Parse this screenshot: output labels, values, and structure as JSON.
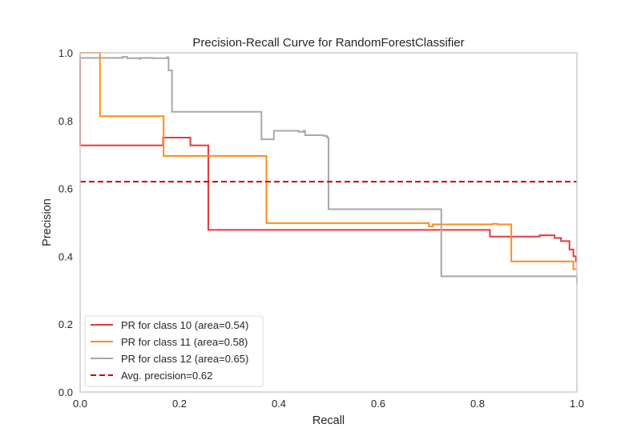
{
  "chart_data": {
    "type": "line",
    "title": "Precision-Recall Curve for RandomForestClassifier",
    "xlabel": "Recall",
    "ylabel": "Precision",
    "xlim": [
      0.0,
      1.0
    ],
    "ylim": [
      0.0,
      1.0
    ],
    "xticks": [
      0.0,
      0.2,
      0.4,
      0.6,
      0.8,
      1.0
    ],
    "yticks": [
      0.0,
      0.2,
      0.4,
      0.6,
      0.8,
      1.0
    ],
    "xtick_labels": [
      "0.0",
      "0.2",
      "0.4",
      "0.6",
      "0.8",
      "1.0"
    ],
    "ytick_labels": [
      "0.0",
      "0.2",
      "0.4",
      "0.6",
      "0.8",
      "1.0"
    ],
    "grid": false,
    "legend_position": "lower-left",
    "series": [
      {
        "name": "PR for class 10 (area=0.54)",
        "color": "#e8383d",
        "step": true,
        "points": [
          [
            0.0,
            1.0
          ],
          [
            0.0,
            0.727
          ],
          [
            0.167,
            0.727
          ],
          [
            0.167,
            0.75
          ],
          [
            0.222,
            0.75
          ],
          [
            0.222,
            0.727
          ],
          [
            0.258,
            0.727
          ],
          [
            0.258,
            0.478
          ],
          [
            0.825,
            0.478
          ],
          [
            0.825,
            0.458
          ],
          [
            0.925,
            0.458
          ],
          [
            0.925,
            0.462
          ],
          [
            0.955,
            0.462
          ],
          [
            0.955,
            0.454
          ],
          [
            0.968,
            0.454
          ],
          [
            0.968,
            0.445
          ],
          [
            0.985,
            0.445
          ],
          [
            0.985,
            0.42
          ],
          [
            0.993,
            0.42
          ],
          [
            0.993,
            0.4
          ],
          [
            0.998,
            0.4
          ],
          [
            0.998,
            0.385
          ],
          [
            1.0,
            0.385
          ]
        ]
      },
      {
        "name": "PR for class 11 (area=0.58)",
        "color": "#ff8c1a",
        "step": true,
        "points": [
          [
            0.0,
            1.0
          ],
          [
            0.04,
            1.0
          ],
          [
            0.04,
            0.813
          ],
          [
            0.168,
            0.813
          ],
          [
            0.168,
            0.696
          ],
          [
            0.375,
            0.696
          ],
          [
            0.375,
            0.498
          ],
          [
            0.702,
            0.498
          ],
          [
            0.702,
            0.488
          ],
          [
            0.71,
            0.488
          ],
          [
            0.71,
            0.494
          ],
          [
            0.83,
            0.494
          ],
          [
            0.83,
            0.496
          ],
          [
            0.84,
            0.496
          ],
          [
            0.84,
            0.494
          ],
          [
            0.868,
            0.494
          ],
          [
            0.868,
            0.385
          ],
          [
            0.993,
            0.385
          ],
          [
            0.993,
            0.362
          ],
          [
            1.0,
            0.362
          ]
        ]
      },
      {
        "name": "PR for class 12 (area=0.65)",
        "color": "#a8a8a8",
        "step": true,
        "points": [
          [
            0.0,
            1.0
          ],
          [
            0.0,
            0.985
          ],
          [
            0.085,
            0.985
          ],
          [
            0.085,
            0.988
          ],
          [
            0.095,
            0.988
          ],
          [
            0.095,
            0.984
          ],
          [
            0.12,
            0.984
          ],
          [
            0.12,
            0.982
          ],
          [
            0.122,
            0.982
          ],
          [
            0.122,
            0.985
          ],
          [
            0.145,
            0.985
          ],
          [
            0.145,
            0.984
          ],
          [
            0.175,
            0.984
          ],
          [
            0.175,
            0.987
          ],
          [
            0.178,
            0.987
          ],
          [
            0.178,
            0.948
          ],
          [
            0.185,
            0.948
          ],
          [
            0.185,
            0.826
          ],
          [
            0.365,
            0.826
          ],
          [
            0.365,
            0.745
          ],
          [
            0.39,
            0.745
          ],
          [
            0.39,
            0.77
          ],
          [
            0.44,
            0.77
          ],
          [
            0.44,
            0.767
          ],
          [
            0.45,
            0.767
          ],
          [
            0.45,
            0.77
          ],
          [
            0.453,
            0.77
          ],
          [
            0.453,
            0.757
          ],
          [
            0.49,
            0.757
          ],
          [
            0.49,
            0.755
          ],
          [
            0.497,
            0.755
          ],
          [
            0.497,
            0.75
          ],
          [
            0.5,
            0.75
          ],
          [
            0.5,
            0.539
          ],
          [
            0.727,
            0.539
          ],
          [
            0.727,
            0.341
          ],
          [
            1.0,
            0.341
          ],
          [
            1.0,
            0.32
          ]
        ]
      }
    ],
    "reference_line": {
      "name": "Avg. precision=0.62",
      "color": "#d40000",
      "value": 0.62,
      "style": "dashed"
    }
  }
}
